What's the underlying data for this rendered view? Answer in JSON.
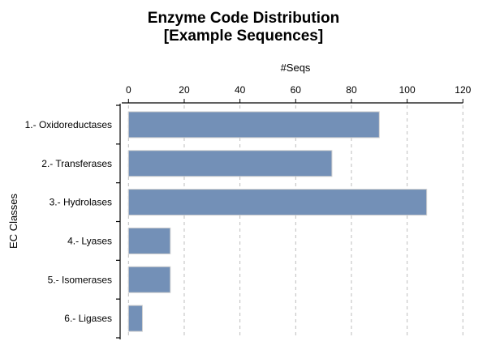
{
  "chart_data": {
    "type": "bar",
    "orientation": "horizontal",
    "title": [
      "Enzyme Code Distribution",
      "[Example Sequences]"
    ],
    "xlabel": "#Seqs",
    "ylabel": "EC Classes",
    "categories": [
      "1.- Oxidoreductases",
      "2.- Transferases",
      "3.- Hydrolases",
      "4.- Lyases",
      "5.- Isomerases",
      "6.- Ligases"
    ],
    "values": [
      90,
      73,
      107,
      15,
      15,
      5
    ],
    "xlim": [
      0,
      120
    ],
    "xticks": [
      0,
      20,
      40,
      60,
      80,
      100,
      120
    ],
    "x_axis_position": "top",
    "grid": "vertical dashed",
    "bar_color": "#7390b7",
    "bar_stroke": "#d0d0d0"
  }
}
